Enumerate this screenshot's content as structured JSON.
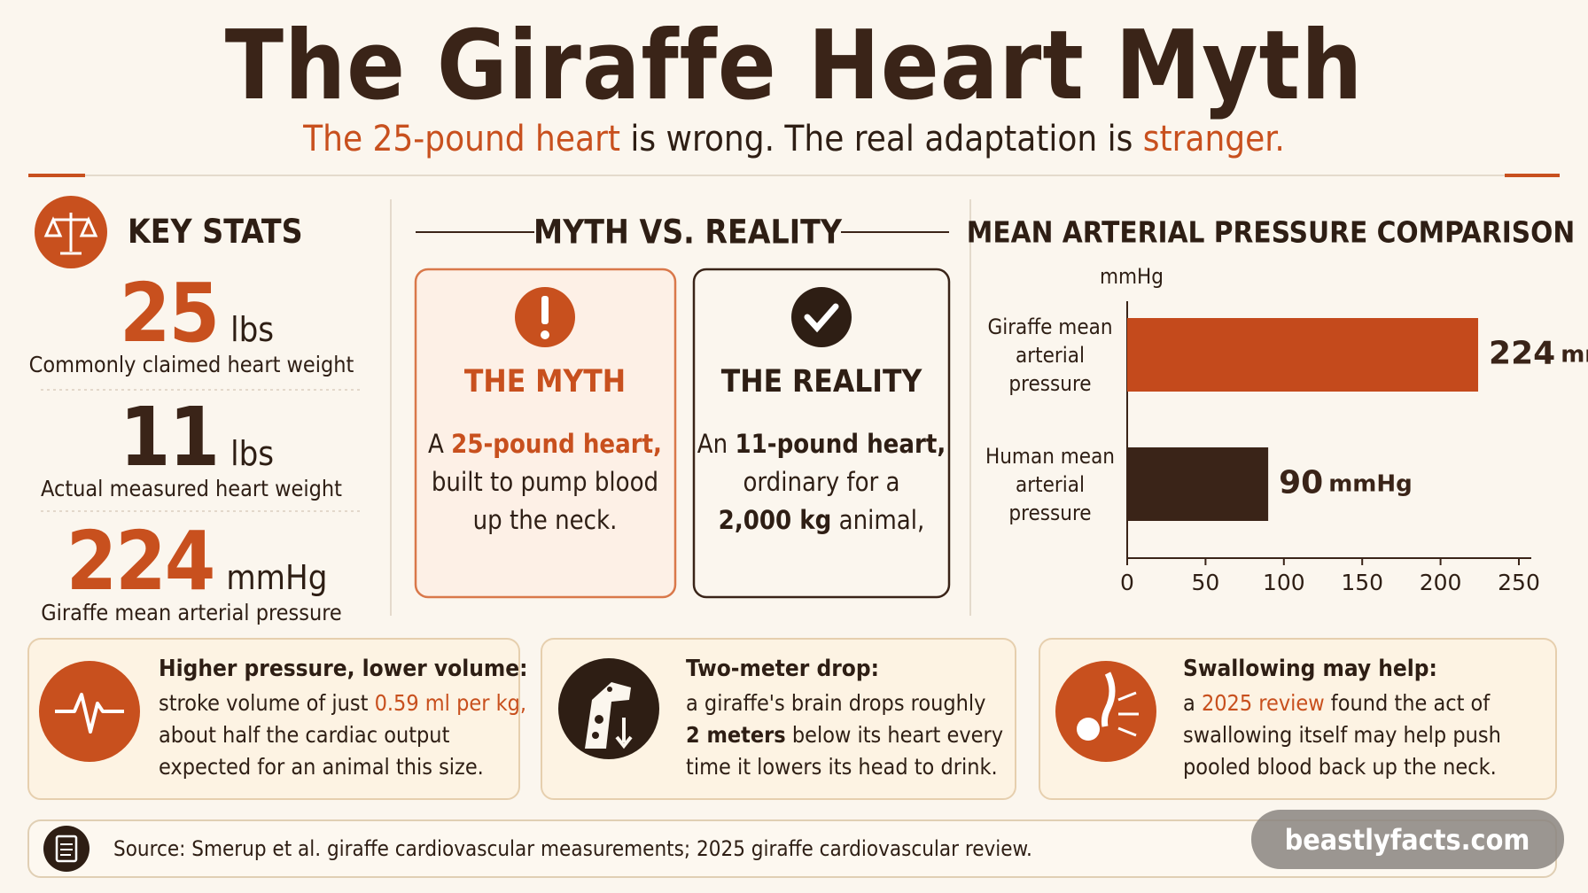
{
  "header": {
    "title": "The Giraffe Heart Myth",
    "subtitle": [
      {
        "text": "The 25-pound heart",
        "color": "#c8501e"
      },
      " is wrong. The real adaptation is ",
      {
        "text": "stranger.",
        "color": "#c8501e"
      }
    ]
  },
  "key_stats": {
    "heading": "KEY STATS",
    "items": [
      {
        "value": "25",
        "unit": "lbs",
        "label": "Commonly claimed heart weight",
        "color": "#c8501e"
      },
      {
        "value": "11",
        "unit": "lbs",
        "label": "Actual measured heart weight",
        "color": "#3a2418"
      },
      {
        "value": "224",
        "unit": "mmHg",
        "label": "Giraffe mean arterial pressure",
        "color": "#c8501e"
      }
    ]
  },
  "myth_reality": {
    "heading": "MYTH VS. REALITY",
    "myth": {
      "title": "THE MYTH",
      "lines": [
        [
          "A ",
          {
            "text": "25-pound heart,",
            "color": "#c8501e",
            "bold": true
          }
        ],
        [
          "built to pump blood"
        ],
        [
          "up the neck."
        ]
      ]
    },
    "reality": {
      "title": "THE REALITY",
      "lines": [
        [
          "An ",
          {
            "text": "11-pound heart,",
            "bold": true
          }
        ],
        [
          "ordinary for a"
        ],
        [
          {
            "text": "2,000 kg",
            "bold": true
          },
          " animal,"
        ]
      ]
    }
  },
  "chart_data": {
    "type": "bar",
    "orientation": "horizontal",
    "title": "MEAN ARTERIAL PRESSURE COMPARISON",
    "x_label": "mmHg",
    "categories": [
      "Giraffe mean arterial pressure",
      "Human mean arterial pressure"
    ],
    "series": [
      {
        "name": "Mean arterial pressure",
        "colors": [
          "#c44a1c",
          "#3a2418"
        ],
        "values": [
          224,
          90
        ]
      }
    ],
    "xlim": [
      0,
      250
    ],
    "xticks": [
      0,
      50,
      100,
      150,
      200,
      250
    ]
  },
  "cards": [
    {
      "title": "Higher pressure, lower volume:",
      "lines": [
        [
          "stroke volume of just ",
          {
            "text": "0.59 ml per kg,",
            "color": "#c8501e"
          }
        ],
        [
          "about half the cardiac output"
        ],
        [
          "expected for an animal this size."
        ]
      ]
    },
    {
      "title": "Two-meter drop:",
      "lines": [
        [
          "a giraffe's brain drops roughly"
        ],
        [
          {
            "text": "2 meters",
            "bold": true
          },
          " below its heart every"
        ],
        [
          "time it lowers its head to drink."
        ]
      ]
    },
    {
      "title": "Swallowing may help:",
      "lines": [
        [
          "a ",
          {
            "text": "2025 review",
            "color": "#c8501e"
          },
          " found the act of"
        ],
        [
          "swallowing itself may help push"
        ],
        [
          "pooled blood back up the neck."
        ]
      ]
    }
  ],
  "source": "Source: Smerup et al. giraffe cardiovascular measurements; 2025 giraffe cardiovascular review.",
  "watermark": "beastlyfacts.com"
}
